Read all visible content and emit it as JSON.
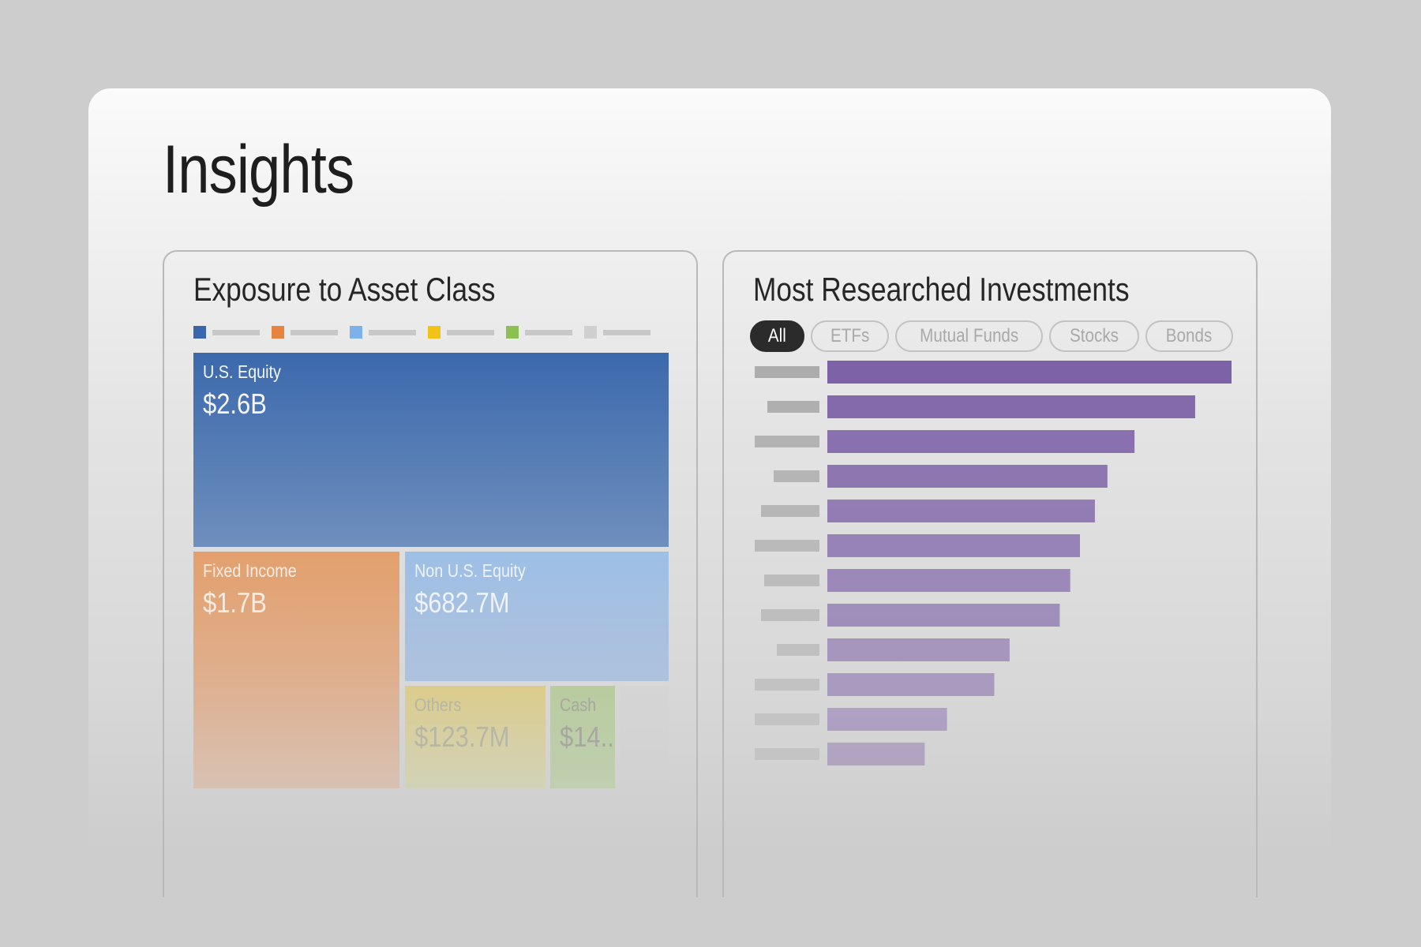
{
  "page": {
    "title": "Insights"
  },
  "exposure": {
    "title": "Exposure to Asset Class",
    "legend_colors": [
      "#3a66ad",
      "#e8833f",
      "#7db1ea",
      "#f2c218",
      "#8cc152",
      "#cfcfcf"
    ],
    "tiles": [
      {
        "label": "U.S. Equity",
        "value": "$2.6B"
      },
      {
        "label": "Fixed Income",
        "value": "$1.7B"
      },
      {
        "label": "Non U.S. Equity",
        "value": "$682.7M"
      },
      {
        "label": "Others",
        "value": "$123.7M"
      },
      {
        "label": "Cash",
        "value": "$14.."
      }
    ]
  },
  "research": {
    "title": "Most Researched Investments",
    "filters": [
      "All",
      "ETFs",
      "Mutual Funds",
      "Stocks",
      "Bonds"
    ],
    "active_filter": "All",
    "bar_color": "#7e62a8"
  },
  "chart_data": {
    "type": "bar",
    "orientation": "horizontal",
    "title": "Most Researched Investments",
    "categories": [
      "",
      "",
      "",
      "",
      "",
      "",
      "",
      "",
      "",
      "",
      "",
      ""
    ],
    "values": [
      100,
      91,
      76,
      69.3,
      66.2,
      62.5,
      60.1,
      57.5,
      45.1,
      41.3,
      29.6,
      24.1
    ],
    "xlim": [
      0,
      100
    ]
  }
}
